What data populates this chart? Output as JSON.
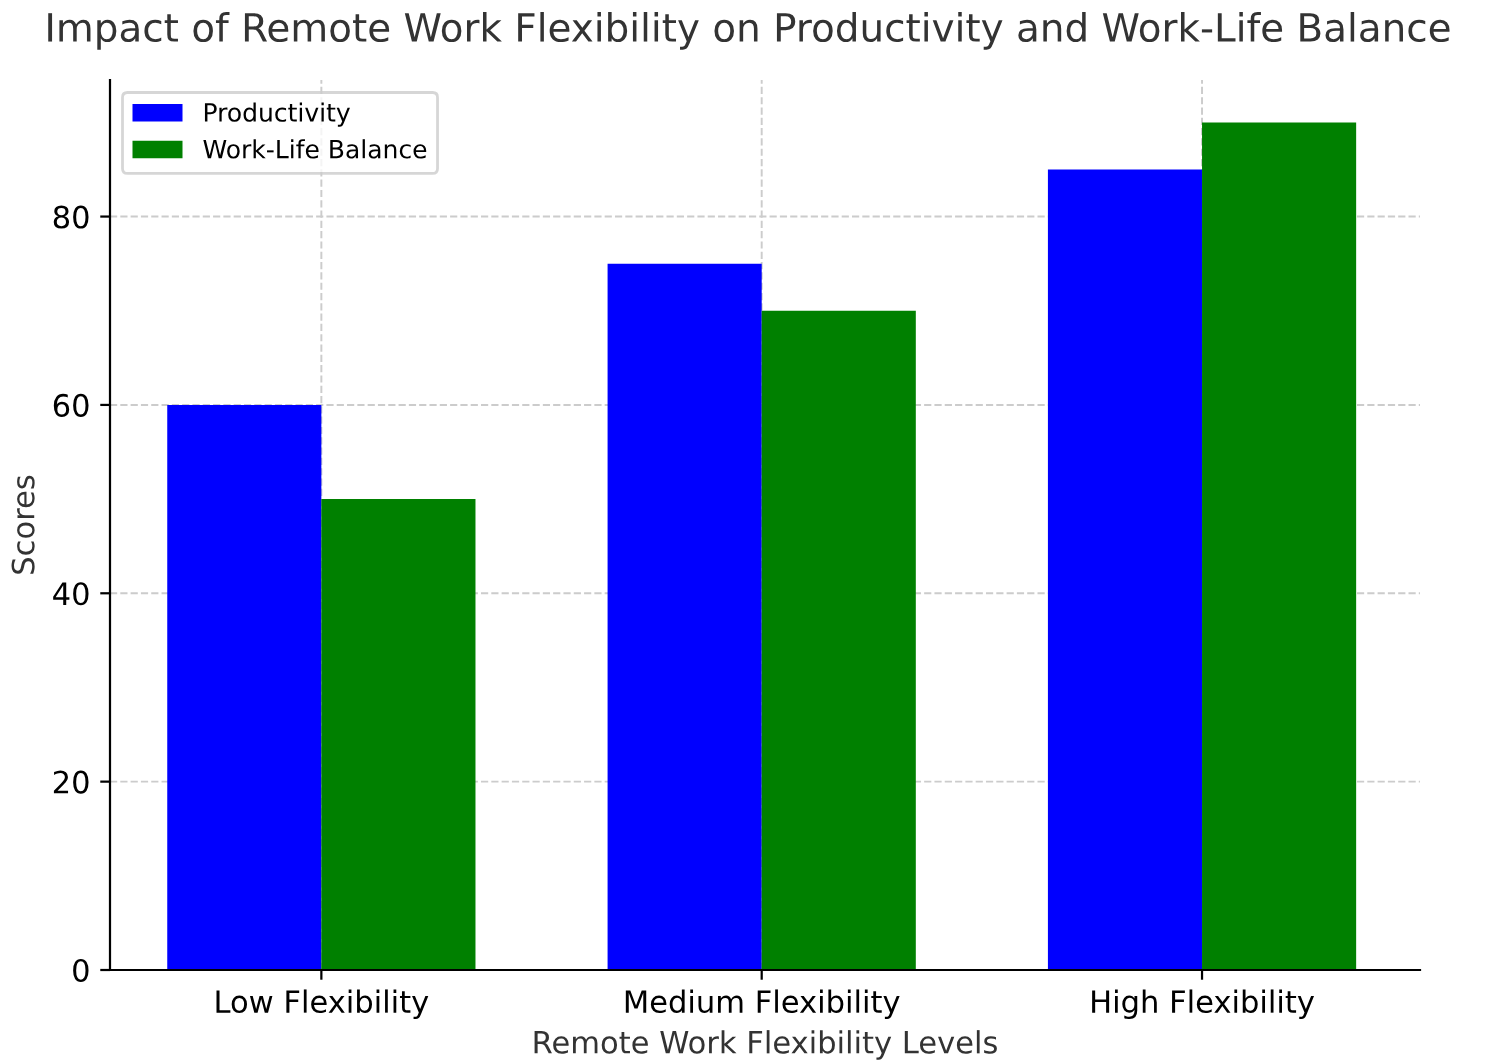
{
  "chart_data": {
    "type": "bar",
    "title": "Impact of Remote Work Flexibility on Productivity and Work-Life Balance",
    "xlabel": "Remote Work Flexibility Levels",
    "ylabel": "Scores",
    "categories": [
      "Low Flexibility",
      "Medium Flexibility",
      "High Flexibility"
    ],
    "series": [
      {
        "name": "Productivity",
        "color": "#0000ff",
        "values": [
          60,
          75,
          85
        ]
      },
      {
        "name": "Work-Life Balance",
        "color": "#008000",
        "values": [
          50,
          70,
          90
        ]
      }
    ],
    "ylim": [
      0,
      94.5
    ],
    "yticks": [
      0,
      20,
      40,
      60,
      80
    ],
    "grid": true,
    "legend": "top left"
  }
}
